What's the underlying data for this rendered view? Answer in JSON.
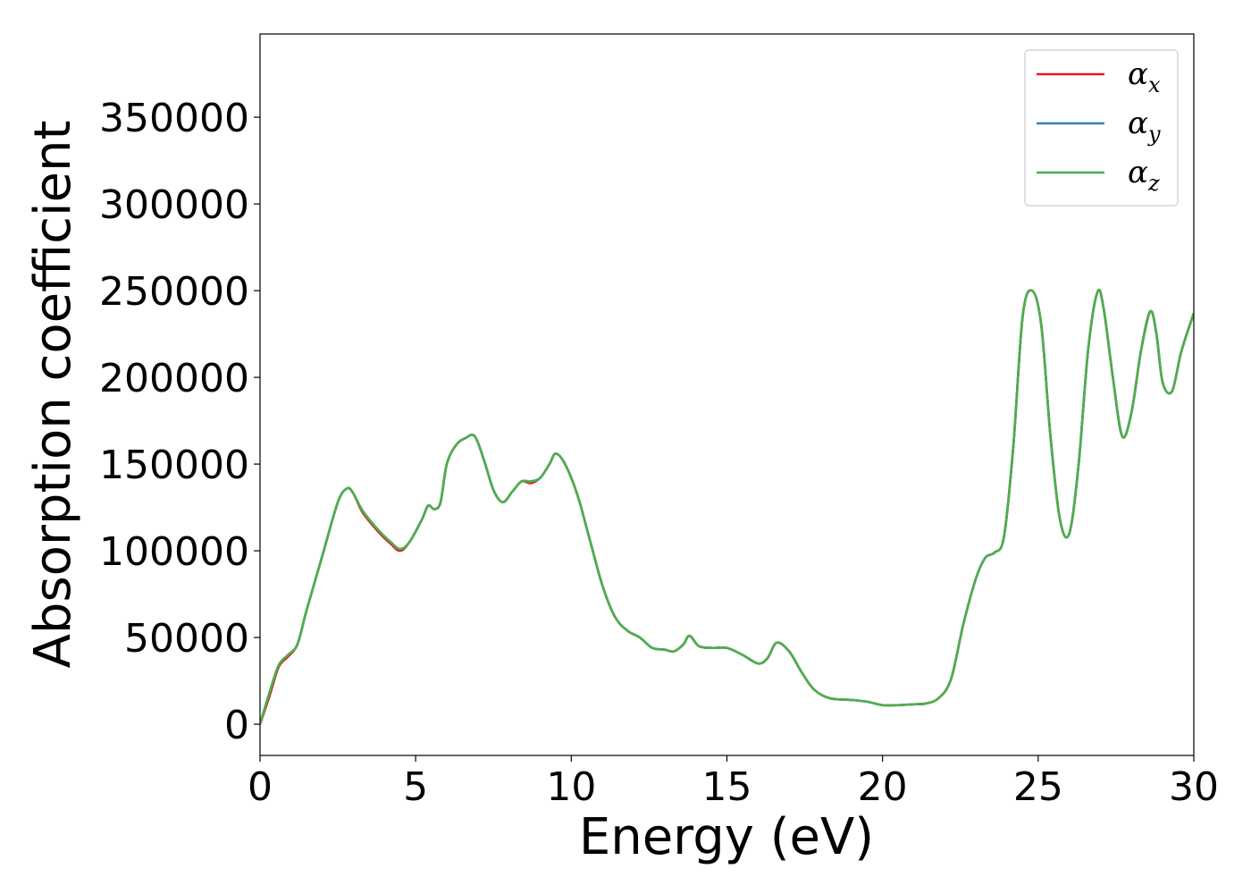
{
  "chart_data": {
    "type": "line",
    "title": "",
    "xlabel": "Energy (eV)",
    "ylabel": "Absorption coefficient",
    "xlim": [
      0,
      30
    ],
    "ylim": [
      -18000,
      398000
    ],
    "xticks": [
      0,
      5,
      10,
      15,
      20,
      25,
      30
    ],
    "yticks": [
      0,
      50000,
      100000,
      150000,
      200000,
      250000,
      300000,
      350000
    ],
    "grid": false,
    "legend_position": "top-right",
    "series": [
      {
        "name": "α_x",
        "legend_main": "α",
        "legend_sub": "x",
        "color": "#e41a1c",
        "x": [
          0,
          0.3,
          0.6,
          0.9,
          1.2,
          1.5,
          2.0,
          2.5,
          2.8,
          3.0,
          3.3,
          3.8,
          4.2,
          4.5,
          4.8,
          5.2,
          5.4,
          5.6,
          5.8,
          6.0,
          6.3,
          6.6,
          6.9,
          7.2,
          7.5,
          7.8,
          8.1,
          8.4,
          8.7,
          9.0,
          9.3,
          9.5,
          9.8,
          10.2,
          10.6,
          11.0,
          11.4,
          11.8,
          12.2,
          12.6,
          13.0,
          13.3,
          13.6,
          13.8,
          14.1,
          14.5,
          15.0,
          15.5,
          16.0,
          16.3,
          16.6,
          17.0,
          17.4,
          17.8,
          18.3,
          19.0,
          19.5,
          20.0,
          20.5,
          21.0,
          21.4,
          21.8,
          22.2,
          22.6,
          23.0,
          23.3,
          23.6,
          23.9,
          24.2,
          24.5,
          24.8,
          25.1,
          25.4,
          25.7,
          26.0,
          26.3,
          26.6,
          26.9,
          27.1,
          27.4,
          27.7,
          28.0,
          28.3,
          28.6,
          28.8,
          29.0,
          29.3,
          29.6,
          30.0
        ],
        "values": [
          0,
          16000,
          33000,
          39000,
          46000,
          66000,
          97000,
          128000,
          136000,
          133000,
          122000,
          111000,
          104000,
          100000,
          105000,
          118000,
          126000,
          124000,
          128000,
          150000,
          161000,
          165000,
          166000,
          152000,
          135000,
          128000,
          134000,
          140000,
          139000,
          142000,
          150000,
          156000,
          150000,
          132000,
          106000,
          80000,
          62000,
          54000,
          50000,
          44000,
          43000,
          42000,
          46000,
          51000,
          45000,
          44000,
          44000,
          40000,
          35000,
          38000,
          47000,
          42000,
          30000,
          20000,
          15000,
          14000,
          13000,
          11000,
          11000,
          11500,
          12000,
          15000,
          26000,
          58000,
          84000,
          96000,
          99000,
          108000,
          160000,
          235000,
          250000,
          230000,
          165000,
          118000,
          110000,
          150000,
          215000,
          249000,
          240000,
          200000,
          166000,
          180000,
          215000,
          238000,
          225000,
          197000,
          192000,
          215000,
          237000
        ]
      },
      {
        "name": "α_y",
        "legend_main": "α",
        "legend_sub": "y",
        "color": "#377eb8",
        "x": [
          0,
          0.3,
          0.6,
          0.9,
          1.2,
          1.5,
          2.0,
          2.5,
          2.8,
          3.0,
          3.3,
          3.8,
          4.2,
          4.5,
          4.8,
          5.2,
          5.4,
          5.6,
          5.8,
          6.0,
          6.3,
          6.6,
          6.9,
          7.2,
          7.5,
          7.8,
          8.1,
          8.4,
          8.7,
          9.0,
          9.3,
          9.5,
          9.8,
          10.2,
          10.6,
          11.0,
          11.4,
          11.8,
          12.2,
          12.6,
          13.0,
          13.3,
          13.6,
          13.8,
          14.1,
          14.5,
          15.0,
          15.5,
          16.0,
          16.3,
          16.6,
          17.0,
          17.4,
          17.8,
          18.3,
          19.0,
          19.5,
          20.0,
          20.5,
          21.0,
          21.4,
          21.8,
          22.2,
          22.6,
          23.0,
          23.3,
          23.6,
          23.9,
          24.2,
          24.5,
          24.8,
          25.1,
          25.4,
          25.7,
          26.0,
          26.3,
          26.6,
          26.9,
          27.1,
          27.4,
          27.7,
          28.0,
          28.3,
          28.6,
          28.8,
          29.0,
          29.3,
          29.6,
          30.0
        ],
        "values": [
          0,
          18000,
          34000,
          40000,
          46000,
          66000,
          97000,
          128000,
          136000,
          133000,
          123000,
          112000,
          105000,
          101000,
          105000,
          118000,
          126000,
          124000,
          128000,
          150000,
          161000,
          165000,
          166000,
          152000,
          135000,
          128000,
          134000,
          140000,
          140000,
          142000,
          150000,
          156000,
          150000,
          132000,
          106000,
          80000,
          62000,
          54000,
          50000,
          44000,
          43000,
          42000,
          46000,
          51000,
          45000,
          44000,
          44000,
          40000,
          35000,
          38000,
          47000,
          42000,
          30000,
          20000,
          15000,
          14000,
          13000,
          11000,
          11000,
          11500,
          12000,
          15000,
          26000,
          58000,
          84000,
          96000,
          99000,
          108000,
          160000,
          235000,
          250000,
          230000,
          165000,
          118000,
          110000,
          150000,
          215000,
          249000,
          240000,
          200000,
          166000,
          180000,
          215000,
          238000,
          225000,
          197000,
          192000,
          215000,
          237000
        ]
      },
      {
        "name": "α_z",
        "legend_main": "α",
        "legend_sub": "z",
        "color": "#4daf4a",
        "x": [
          0,
          0.3,
          0.6,
          0.9,
          1.2,
          1.5,
          2.0,
          2.5,
          2.8,
          3.0,
          3.3,
          3.8,
          4.2,
          4.5,
          4.8,
          5.2,
          5.4,
          5.6,
          5.8,
          6.0,
          6.3,
          6.6,
          6.9,
          7.2,
          7.5,
          7.8,
          8.1,
          8.4,
          8.7,
          9.0,
          9.3,
          9.5,
          9.8,
          10.2,
          10.6,
          11.0,
          11.4,
          11.8,
          12.2,
          12.6,
          13.0,
          13.3,
          13.6,
          13.8,
          14.1,
          14.5,
          15.0,
          15.5,
          16.0,
          16.3,
          16.6,
          17.0,
          17.4,
          17.8,
          18.3,
          19.0,
          19.5,
          20.0,
          20.5,
          21.0,
          21.4,
          21.8,
          22.2,
          22.6,
          23.0,
          23.3,
          23.6,
          23.9,
          24.2,
          24.5,
          24.8,
          25.1,
          25.4,
          25.7,
          26.0,
          26.3,
          26.6,
          26.9,
          27.1,
          27.4,
          27.7,
          28.0,
          28.3,
          28.6,
          28.8,
          29.0,
          29.3,
          29.6,
          30.0
        ],
        "values": [
          0,
          18000,
          34000,
          40000,
          46000,
          66000,
          97000,
          128000,
          136000,
          133000,
          123000,
          112000,
          105000,
          101000,
          105000,
          118000,
          126000,
          124000,
          128000,
          150000,
          161000,
          165000,
          166000,
          152000,
          135000,
          128000,
          134000,
          140000,
          140000,
          142000,
          150000,
          156000,
          150000,
          132000,
          106000,
          80000,
          62000,
          54000,
          50000,
          44000,
          43000,
          42000,
          46000,
          51000,
          45000,
          44000,
          44000,
          40000,
          35000,
          38000,
          47000,
          42000,
          30000,
          20000,
          15000,
          14000,
          13000,
          11000,
          11000,
          11500,
          12000,
          15000,
          26000,
          58000,
          84000,
          96000,
          99000,
          108000,
          160000,
          235000,
          250000,
          230000,
          165000,
          118000,
          110000,
          150000,
          215000,
          249000,
          240000,
          200000,
          166000,
          180000,
          215000,
          238000,
          225000,
          197000,
          192000,
          215000,
          237000
        ]
      }
    ]
  }
}
